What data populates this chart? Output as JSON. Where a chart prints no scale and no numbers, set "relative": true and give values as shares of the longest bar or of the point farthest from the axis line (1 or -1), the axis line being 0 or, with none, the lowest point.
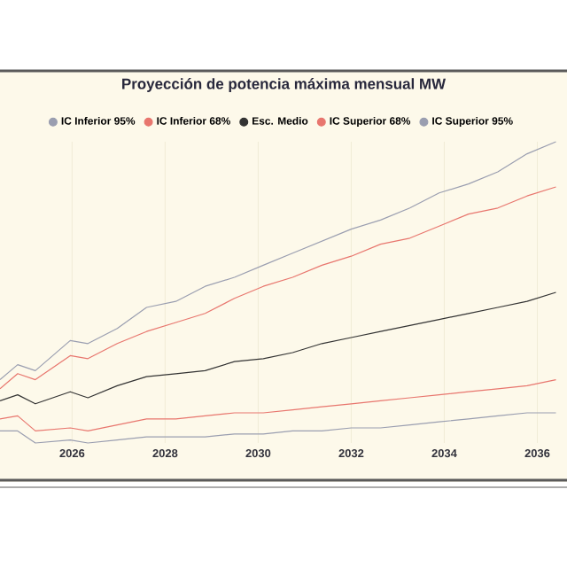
{
  "chart_data": {
    "type": "line",
    "title": "Proyección de potencia máxima mensual MW",
    "x": [
      2024.45,
      2024.83,
      2025.21,
      2025.96,
      2026.34,
      2026.97,
      2027.6,
      2028.23,
      2028.86,
      2029.49,
      2030.11,
      2030.74,
      2031.37,
      2032.0,
      2032.63,
      2033.26,
      2033.89,
      2034.52,
      2035.15,
      2035.78,
      2036.4
    ],
    "series": [
      {
        "name": "IC Inferior 95%",
        "color": "#9a9eb0",
        "values": [
          0.04,
          0.04,
          0.0,
          0.01,
          0.0,
          0.01,
          0.02,
          0.02,
          0.02,
          0.03,
          0.03,
          0.04,
          0.04,
          0.05,
          0.05,
          0.06,
          0.07,
          0.08,
          0.09,
          0.1,
          0.1
        ]
      },
      {
        "name": "IC Inferior 68%",
        "color": "#e8766e",
        "values": [
          0.08,
          0.09,
          0.04,
          0.05,
          0.04,
          0.06,
          0.08,
          0.08,
          0.09,
          0.1,
          0.1,
          0.11,
          0.12,
          0.13,
          0.14,
          0.15,
          0.16,
          0.17,
          0.18,
          0.19,
          0.21
        ]
      },
      {
        "name": "Esc. Medio",
        "color": "#333333",
        "values": [
          0.14,
          0.16,
          0.13,
          0.17,
          0.15,
          0.19,
          0.22,
          0.23,
          0.24,
          0.27,
          0.28,
          0.3,
          0.33,
          0.35,
          0.37,
          0.39,
          0.41,
          0.43,
          0.45,
          0.47,
          0.5
        ]
      },
      {
        "name": "IC Superior 68%",
        "color": "#e8766e",
        "values": [
          0.18,
          0.23,
          0.21,
          0.29,
          0.28,
          0.33,
          0.37,
          0.4,
          0.43,
          0.48,
          0.52,
          0.55,
          0.59,
          0.62,
          0.66,
          0.68,
          0.72,
          0.76,
          0.78,
          0.82,
          0.85
        ]
      },
      {
        "name": "IC Superior 95%",
        "color": "#9a9eb0",
        "values": [
          0.21,
          0.26,
          0.24,
          0.34,
          0.33,
          0.38,
          0.45,
          0.47,
          0.52,
          0.55,
          0.59,
          0.63,
          0.67,
          0.71,
          0.74,
          0.78,
          0.83,
          0.86,
          0.9,
          0.96,
          1.0
        ]
      }
    ],
    "relative": true,
    "xlim": [
      2024.45,
      2036.6
    ],
    "xticks": [
      2026,
      2028,
      2030,
      2032,
      2034,
      2036
    ],
    "grid": "x",
    "legend": "top",
    "marker": "none",
    "line_style": "solid"
  }
}
